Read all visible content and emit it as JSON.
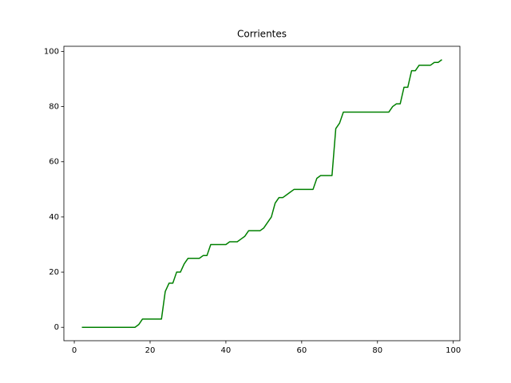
{
  "chart_data": {
    "type": "line",
    "title": "Corrientes",
    "x": [
      2,
      3,
      4,
      5,
      6,
      7,
      8,
      9,
      10,
      11,
      12,
      13,
      14,
      15,
      16,
      17,
      18,
      19,
      20,
      21,
      22,
      23,
      24,
      25,
      26,
      27,
      28,
      29,
      30,
      31,
      32,
      33,
      34,
      35,
      36,
      37,
      38,
      39,
      40,
      41,
      42,
      43,
      44,
      45,
      46,
      47,
      48,
      49,
      50,
      51,
      52,
      53,
      54,
      55,
      56,
      57,
      58,
      59,
      60,
      61,
      62,
      63,
      64,
      65,
      66,
      67,
      68,
      69,
      70,
      71,
      72,
      73,
      74,
      75,
      76,
      77,
      78,
      79,
      80,
      81,
      82,
      83,
      84,
      85,
      86,
      87,
      88,
      89,
      90,
      91,
      92,
      93,
      94,
      95,
      96,
      97
    ],
    "series": [
      {
        "color": "#008000",
        "values": [
          0,
          0,
          0,
          0,
          0,
          0,
          0,
          0,
          0,
          0,
          0,
          0,
          0,
          0,
          0,
          1,
          3,
          3,
          3,
          3,
          3,
          3,
          13,
          16,
          16,
          20,
          20,
          23,
          25,
          25,
          25,
          25,
          26,
          26,
          30,
          30,
          30,
          30,
          30,
          31,
          31,
          31,
          32,
          33,
          35,
          35,
          35,
          35,
          36,
          38,
          40,
          45,
          47,
          47,
          48,
          49,
          50,
          50,
          50,
          50,
          50,
          50,
          54,
          55,
          55,
          55,
          55,
          72,
          74,
          78,
          78,
          78,
          78,
          78,
          78,
          78,
          78,
          78,
          78,
          78,
          78,
          78,
          80,
          81,
          81,
          87,
          87,
          93,
          93,
          95,
          95,
          95,
          95,
          96,
          96,
          97
        ]
      }
    ],
    "xlim": [
      -2.75,
      101.75
    ],
    "ylim": [
      -4.85,
      101.85
    ],
    "xticks": [
      0,
      20,
      40,
      60,
      80,
      100
    ],
    "yticks": [
      0,
      20,
      40,
      60,
      80,
      100
    ],
    "grid": false
  }
}
